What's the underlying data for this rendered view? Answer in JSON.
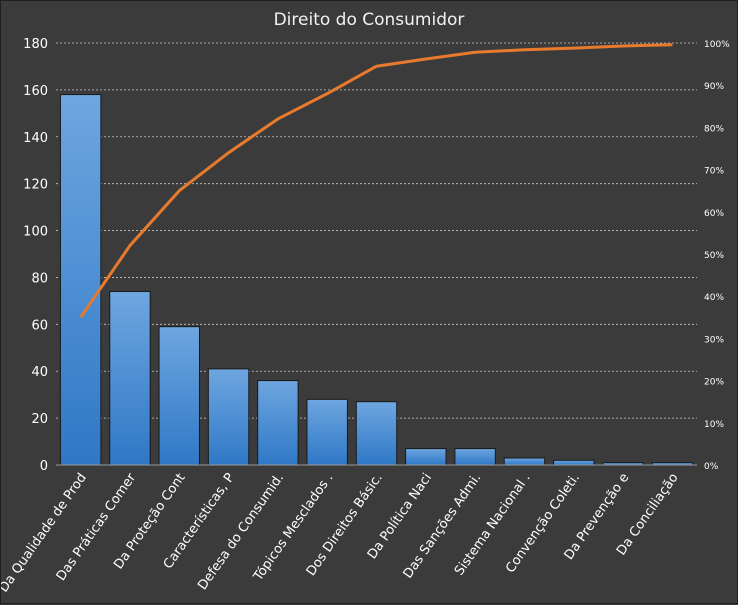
{
  "chart_data": {
    "type": "bar",
    "title": "Direito do Consumidor",
    "categories": [
      "Da Qualidade de Prod",
      "Das Práticas Comer",
      "Da Proteção Cont",
      "Características, P",
      "Defesa do Consumid.",
      "Tópicos Mesclados .",
      "Dos Direitos Básic.",
      "Da Política Naci",
      "Das Sanções Admi.",
      "Sistema Nacional .",
      "Convenção Coleti.",
      "Da Prevenção e",
      "Da Conciliação"
    ],
    "series": [
      {
        "type": "bar",
        "values": [
          158,
          74,
          59,
          41,
          36,
          28,
          27,
          7,
          7,
          3,
          2,
          1,
          1
        ]
      },
      {
        "type": "line",
        "axis": "secondary",
        "values": [
          35,
          52,
          65,
          74,
          82,
          88,
          94.5,
          96.2,
          97.8,
          98.4,
          98.8,
          99.3,
          99.6
        ]
      }
    ],
    "y_ticks": [
      "0",
      "20",
      "40",
      "60",
      "80",
      "100",
      "120",
      "140",
      "160",
      "180"
    ],
    "ylim": [
      0,
      180
    ],
    "y2_ticks": [
      "0%",
      "10%",
      "20%",
      "30%",
      "40%",
      "50%",
      "60%",
      "70%",
      "80%",
      "90%",
      "100%"
    ],
    "y2lim": [
      0,
      100
    ],
    "grid": "horizontal dashed",
    "colors": {
      "background": "#3b3b3b",
      "bar_top": "#6ea6e0",
      "bar_bottom": "#2f78c6",
      "line": "#e87a2e",
      "gridline": "#c8c8c8",
      "text": "#ffffff"
    }
  }
}
